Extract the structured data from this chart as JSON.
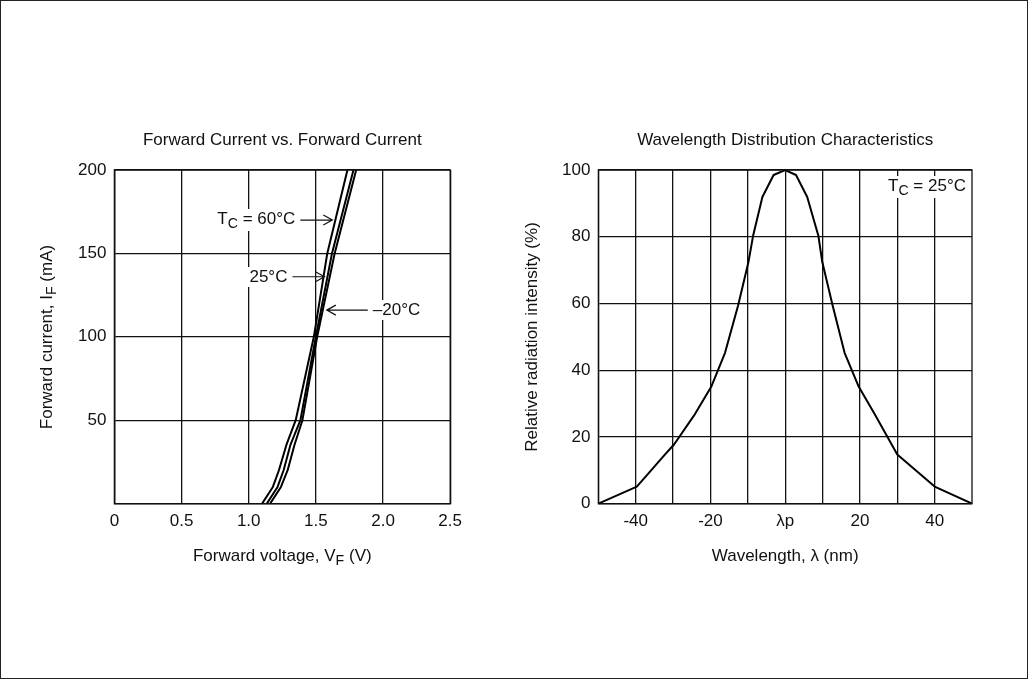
{
  "chart_data": [
    {
      "type": "line",
      "title": "Forward Current vs. Forward Current",
      "xlabel": "Forward voltage,  V$_{F}$ (V)",
      "ylabel": "Forward current, I$_{F}$ (mA)",
      "xlim": [
        0,
        2.5
      ],
      "xticks": [
        0,
        0.5,
        {
          "value": 1,
          "label": "1.0"
        },
        1.5,
        {
          "value": 2,
          "label": "2.0"
        },
        2.5
      ],
      "ylim": [
        0,
        200
      ],
      "yticks": [
        {
          "value": 0,
          "label": null
        },
        50,
        100,
        150,
        200
      ],
      "grid": true,
      "series": [
        {
          "name": "T$_{C}$ = 60°C",
          "color": "#000000",
          "x": [
            1.1,
            1.18,
            1.225,
            1.28,
            1.35,
            1.485,
            1.585,
            1.735
          ],
          "values": [
            0,
            10,
            20,
            35,
            50,
            100,
            150,
            200
          ]
        },
        {
          "name": "25°C",
          "color": "#000000",
          "x": [
            1.135,
            1.215,
            1.26,
            1.31,
            1.385,
            1.5,
            1.62,
            1.78
          ],
          "values": [
            0,
            10,
            20,
            35,
            50,
            100,
            150,
            200
          ]
        },
        {
          "name": "–20°C",
          "color": "#000000",
          "x": [
            1.16,
            1.24,
            1.29,
            1.34,
            1.4,
            1.51,
            1.64,
            1.8
          ],
          "values": [
            0,
            10,
            20,
            35,
            50,
            100,
            150,
            200
          ]
        }
      ]
    },
    {
      "type": "line",
      "title": "Wavelength Distribution Characteristics",
      "xlabel": "Wavelength, λ  (nm)",
      "ylabel": "Relative radiation intensity (%)",
      "xlim": [
        -50,
        50
      ],
      "xticks": [
        -40,
        {
          "value": -30,
          "label": null
        },
        -20,
        {
          "value": -10,
          "label": null
        },
        {
          "value": 0,
          "label": "λp"
        },
        {
          "value": 10,
          "label": null
        },
        20,
        {
          "value": 30,
          "label": null
        },
        40
      ],
      "ylim": [
        0,
        100
      ],
      "yticks": [
        0,
        20,
        40,
        60,
        80,
        100
      ],
      "grid": true,
      "annotations": [
        "T$_{C}$ = 25°C"
      ],
      "series": [
        {
          "color": "#000000",
          "x": [
            -50,
            -39.7,
            -32.2,
            -29.7,
            -24.1,
            -19.8,
            -16.1,
            -12.6,
            -9.8,
            -8.6,
            -6.1,
            -3.1,
            0,
            2.9,
            5.9,
            8.9,
            9.9,
            12.7,
            15.9,
            19.7,
            23.9,
            30,
            40,
            50
          ],
          "values": [
            0,
            5.1,
            14.7,
            17.8,
            26.9,
            35,
            45.2,
            59.4,
            72.6,
            80.2,
            91.9,
            98.5,
            100,
            98.5,
            91.9,
            80.2,
            72.6,
            59.4,
            45.2,
            35,
            26.9,
            14.7,
            5.1,
            0
          ]
        }
      ]
    }
  ]
}
